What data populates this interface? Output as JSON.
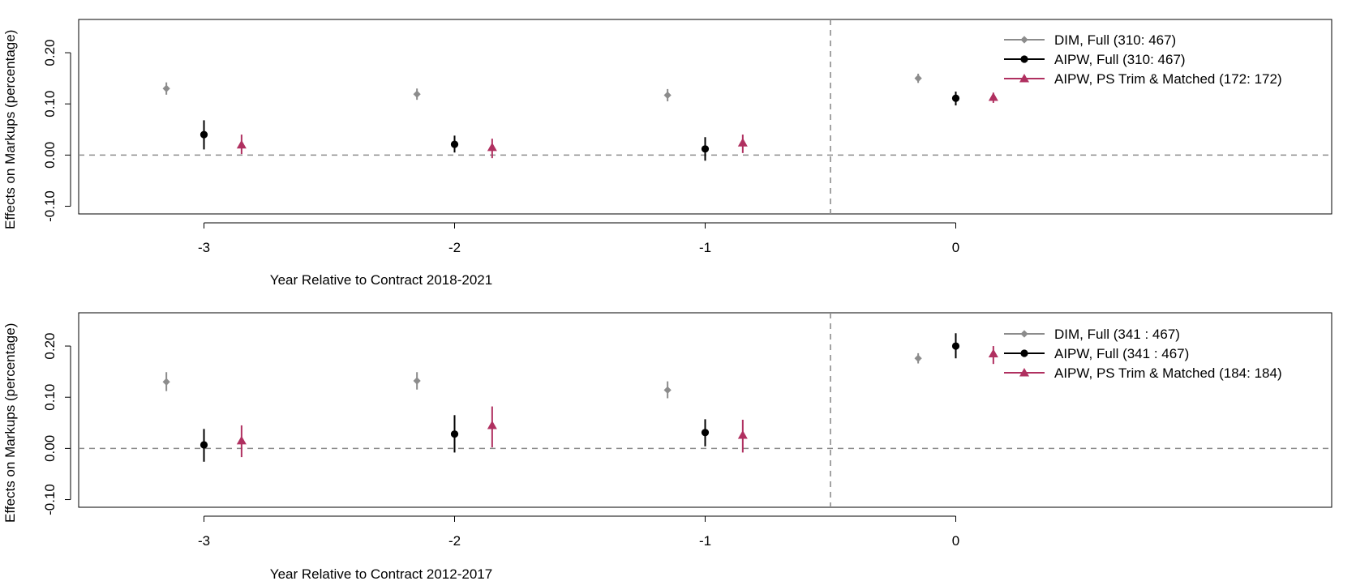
{
  "chart_data": [
    {
      "type": "scatter",
      "title": "",
      "xlabel": "Year Relative to Contract 2018-2021",
      "ylabel": "Effects on Markups (percentage)",
      "xlim": [
        -3.5,
        1.5
      ],
      "ylim": [
        -0.115,
        0.265
      ],
      "x_ticks": [
        -3,
        -2,
        -1,
        0
      ],
      "x_tick_labels": [
        "-3",
        "-2",
        "-1",
        "0"
      ],
      "y_ticks": [
        -0.1,
        0.0,
        0.1,
        0.2
      ],
      "y_tick_labels": [
        "-0.10",
        "0.00",
        "0.10",
        "0.20"
      ],
      "y_axis_line_range": [
        -0.1,
        0.2
      ],
      "hline": 0,
      "vline": -0.5,
      "grid": false,
      "legend_position": "top-right",
      "series": [
        {
          "name": "DIM,  Full (310: 467)",
          "color": "#8c8c8c",
          "marker": "diamond",
          "offset": -0.15,
          "x": [
            -3,
            -2,
            -1,
            0
          ],
          "y": [
            0.13,
            0.119,
            0.117,
            0.15
          ],
          "ci": [
            [
              0.118,
              0.142
            ],
            [
              0.108,
              0.13
            ],
            [
              0.105,
              0.129
            ],
            [
              0.141,
              0.159
            ]
          ]
        },
        {
          "name": "AIPW, Full (310: 467)",
          "color": "#000000",
          "marker": "circle",
          "offset": 0,
          "x": [
            -3,
            -2,
            -1,
            0
          ],
          "y": [
            0.04,
            0.021,
            0.012,
            0.111
          ],
          "ci": [
            [
              0.011,
              0.068
            ],
            [
              0.005,
              0.038
            ],
            [
              -0.011,
              0.035
            ],
            [
              0.097,
              0.124
            ]
          ]
        },
        {
          "name": "AIPW, PS Trim & Matched (172: 172)",
          "color": "#b03060",
          "marker": "triangle",
          "offset": 0.15,
          "x": [
            -3,
            -2,
            -1,
            0
          ],
          "y": [
            0.02,
            0.015,
            0.024,
            0.113
          ],
          "ci": [
            [
              0.002,
              0.04
            ],
            [
              -0.006,
              0.032
            ],
            [
              0.004,
              0.04
            ],
            [
              0.102,
              0.122
            ]
          ]
        }
      ]
    },
    {
      "type": "scatter",
      "title": "",
      "xlabel": "Year Relative to Contract 2012-2017",
      "ylabel": "Effects on Markups (percentage)",
      "xlim": [
        -3.5,
        1.5
      ],
      "ylim": [
        -0.115,
        0.265
      ],
      "x_ticks": [
        -3,
        -2,
        -1,
        0
      ],
      "x_tick_labels": [
        "-3",
        "-2",
        "-1",
        "0"
      ],
      "y_ticks": [
        -0.1,
        0.0,
        0.1,
        0.2
      ],
      "y_tick_labels": [
        "-0.10",
        "0.00",
        "0.10",
        "0.20"
      ],
      "y_axis_line_range": [
        -0.1,
        0.2
      ],
      "hline": 0,
      "vline": -0.5,
      "grid": false,
      "legend_position": "top-right",
      "series": [
        {
          "name": "DIM,  Full (341 : 467)",
          "color": "#8c8c8c",
          "marker": "diamond",
          "offset": -0.15,
          "x": [
            -3,
            -2,
            -1,
            0
          ],
          "y": [
            0.13,
            0.132,
            0.114,
            0.176
          ],
          "ci": [
            [
              0.112,
              0.149
            ],
            [
              0.115,
              0.149
            ],
            [
              0.098,
              0.131
            ],
            [
              0.166,
              0.186
            ]
          ]
        },
        {
          "name": "AIPW, Full (341 : 467)",
          "color": "#000000",
          "marker": "circle",
          "offset": 0,
          "x": [
            -3,
            -2,
            -1,
            0
          ],
          "y": [
            0.007,
            0.028,
            0.031,
            0.2
          ],
          "ci": [
            [
              -0.026,
              0.038
            ],
            [
              -0.008,
              0.065
            ],
            [
              0.004,
              0.057
            ],
            [
              0.176,
              0.225
            ]
          ]
        },
        {
          "name": "AIPW, PS Trim & Matched (184: 184)",
          "color": "#b03060",
          "marker": "triangle",
          "offset": 0.15,
          "x": [
            -3,
            -2,
            -1,
            0
          ],
          "y": [
            0.015,
            0.045,
            0.026,
            0.185
          ],
          "ci": [
            [
              -0.017,
              0.045
            ],
            [
              0.002,
              0.082
            ],
            [
              -0.008,
              0.056
            ],
            [
              0.165,
              0.2
            ]
          ]
        }
      ]
    }
  ]
}
